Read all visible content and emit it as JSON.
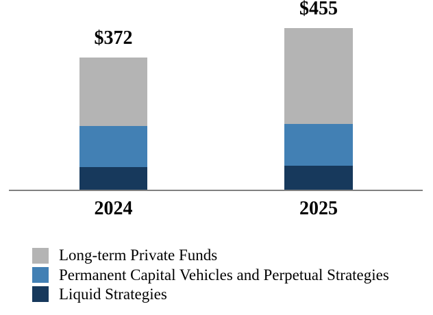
{
  "chart_data": {
    "type": "bar",
    "stacked": true,
    "title": "",
    "xlabel": "",
    "ylabel": "",
    "categories": [
      "2024",
      "2025"
    ],
    "totals": [
      "$372",
      "$455"
    ],
    "total_values": [
      372,
      455
    ],
    "series": [
      {
        "name": "Long-term Private Funds",
        "color": "#b4b4b4",
        "values": [
          192,
          270
        ]
      },
      {
        "name": "Permanent Capital Vehicles and Perpetual Strategies",
        "color": "#4280b4",
        "values": [
          116,
          118
        ]
      },
      {
        "name": "Liquid Strategies",
        "color": "#17395c",
        "values": [
          64,
          67
        ]
      }
    ],
    "values_note": "segment values estimated from bar pixel heights; only stack totals are labeled",
    "ylim": [
      0,
      500
    ],
    "grid": false,
    "legend_position": "bottom-left",
    "axis_line_color": "#808080",
    "label_color": "#000000"
  }
}
